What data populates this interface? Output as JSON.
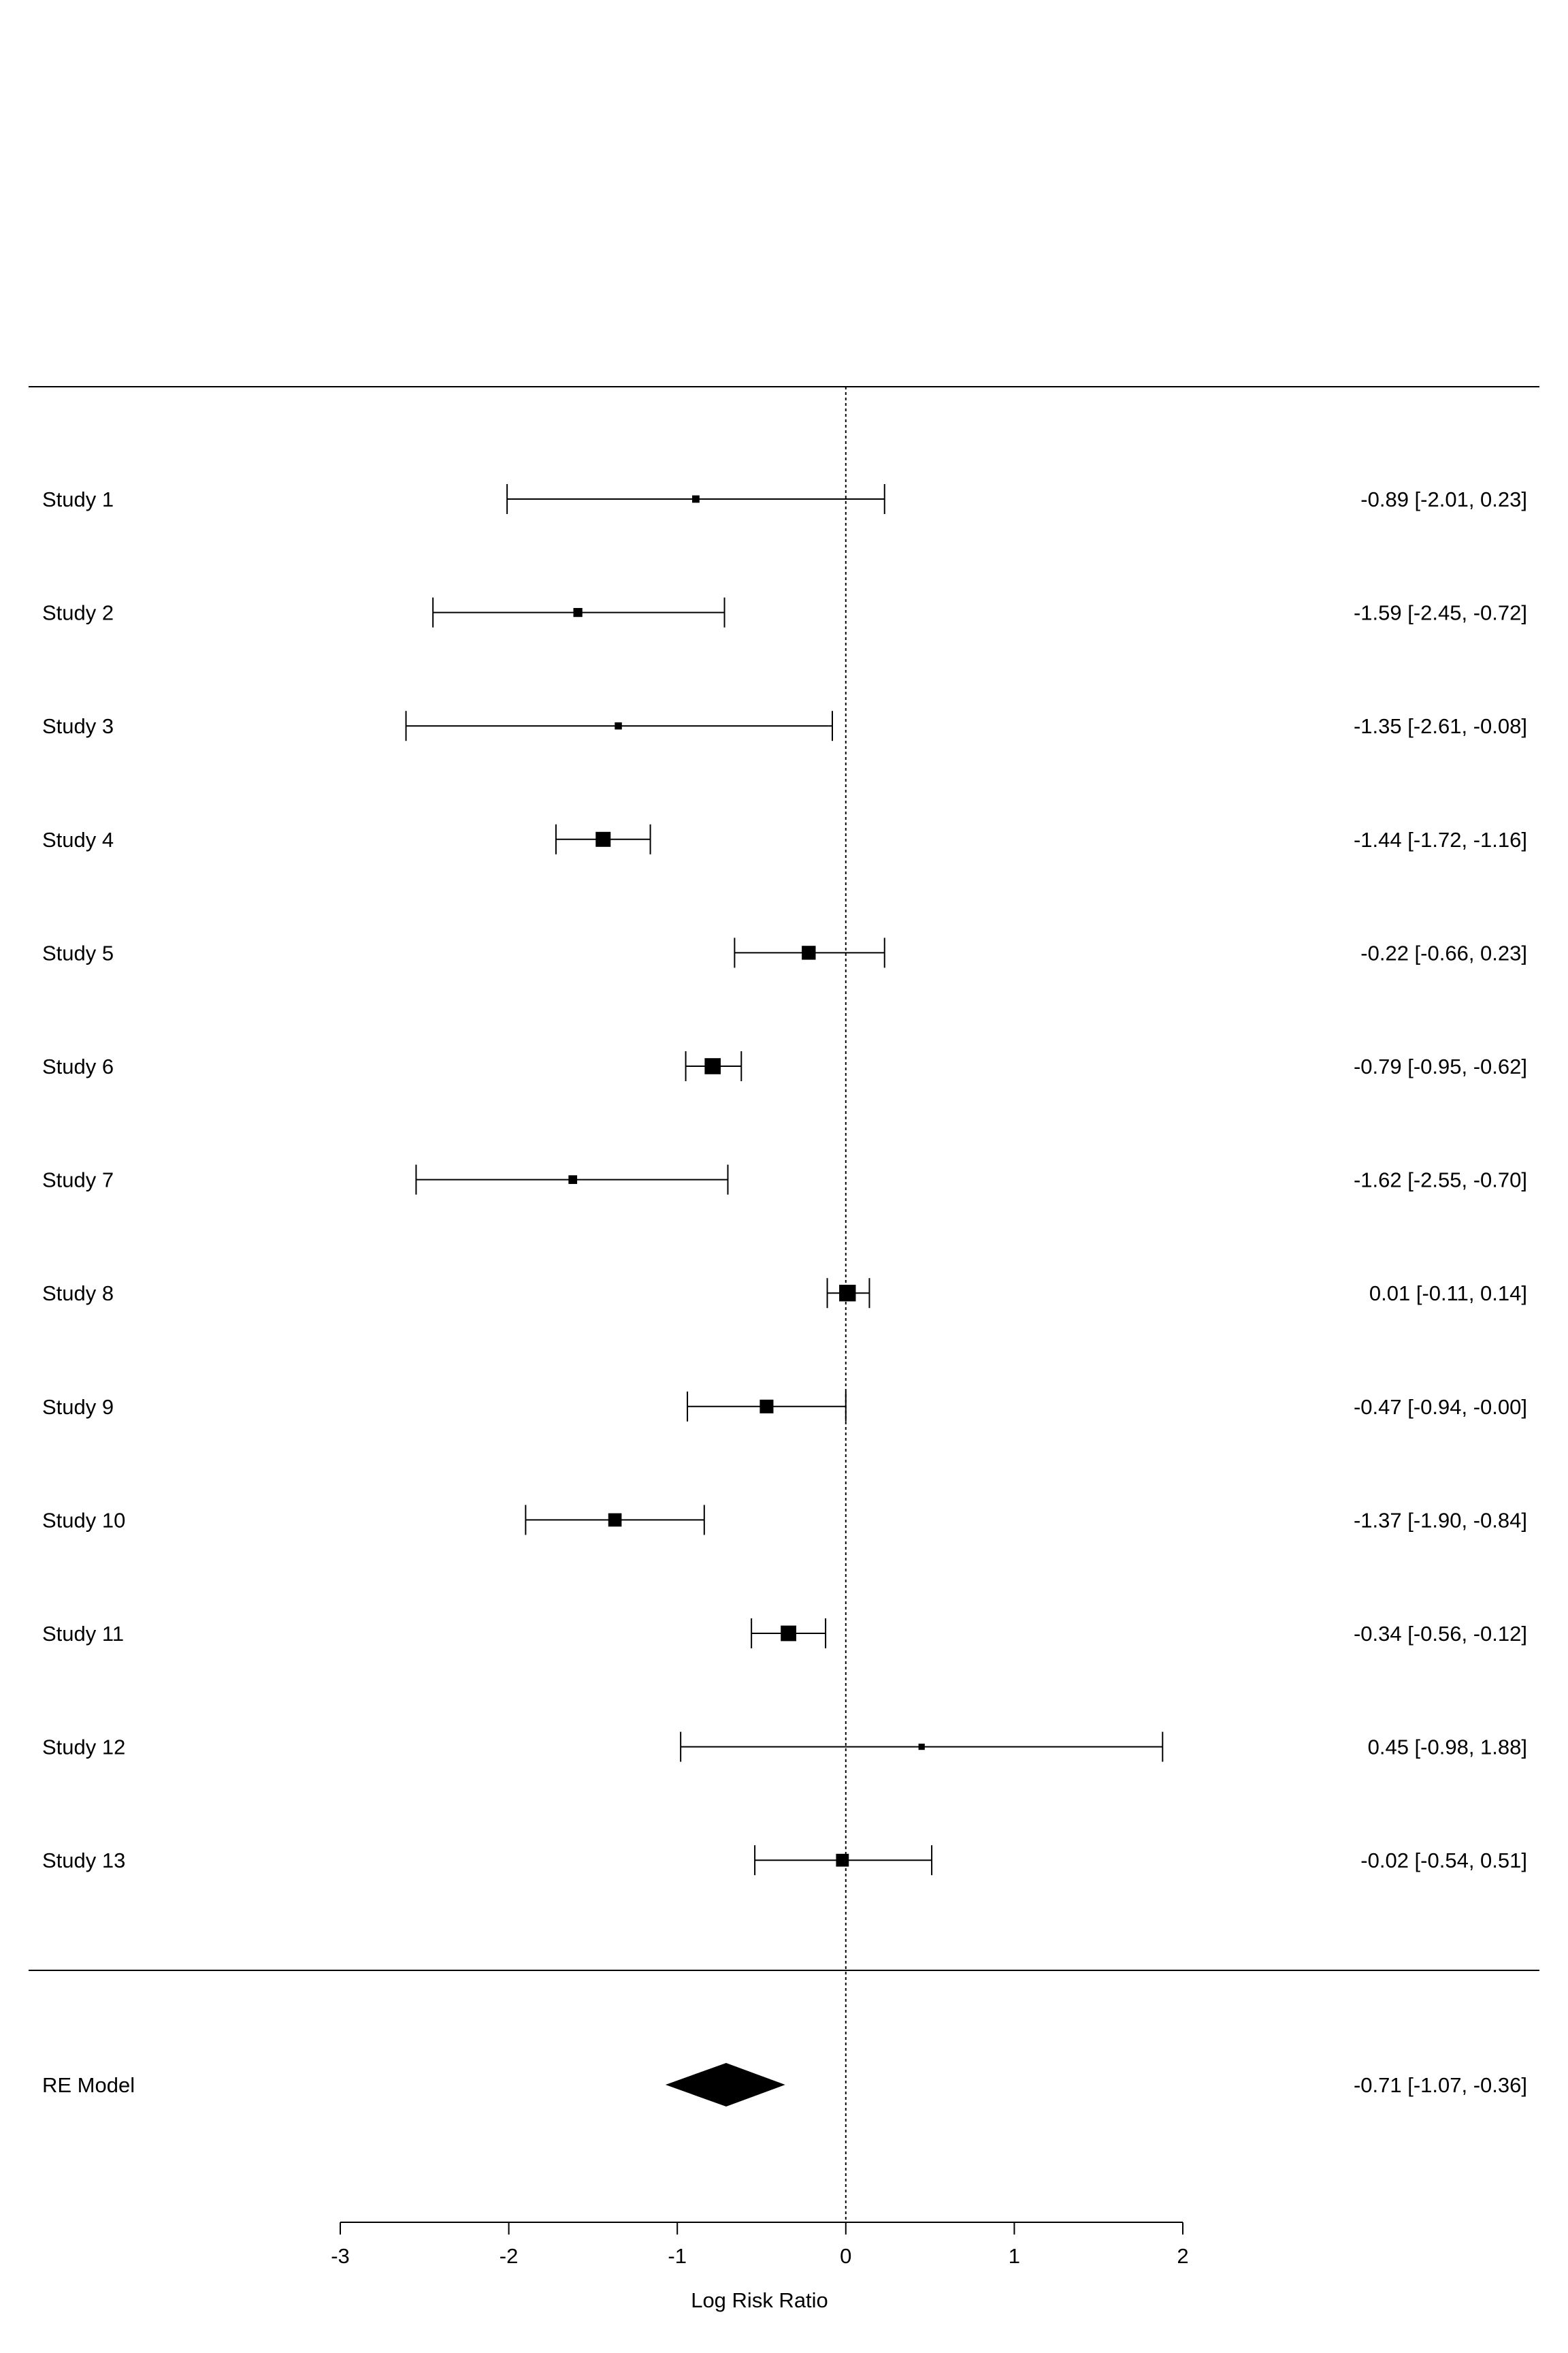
{
  "chart_data": {
    "type": "forest",
    "xlabel": "Log Risk Ratio",
    "xlim": [
      -3,
      2
    ],
    "xticks": [
      -3,
      -2,
      -1,
      0,
      1,
      2
    ],
    "reference_line": 0,
    "studies": [
      {
        "label": "Study 1",
        "estimate": -0.89,
        "ci_low": -2.01,
        "ci_high": 0.23,
        "weight_rel": 0.3,
        "text": "-0.89 [-2.01,  0.23]"
      },
      {
        "label": "Study 2",
        "estimate": -1.59,
        "ci_low": -2.45,
        "ci_high": -0.72,
        "weight_rel": 0.45,
        "text": "-1.59 [-2.45, -0.72]"
      },
      {
        "label": "Study 3",
        "estimate": -1.35,
        "ci_low": -2.61,
        "ci_high": -0.08,
        "weight_rel": 0.28,
        "text": "-1.35 [-2.61, -0.08]"
      },
      {
        "label": "Study 4",
        "estimate": -1.44,
        "ci_low": -1.72,
        "ci_high": -1.16,
        "weight_rel": 1.0,
        "text": "-1.44 [-1.72, -1.16]"
      },
      {
        "label": "Study 5",
        "estimate": -0.22,
        "ci_low": -0.66,
        "ci_high": 0.23,
        "weight_rel": 0.9,
        "text": "-0.22 [-0.66,  0.23]"
      },
      {
        "label": "Study 6",
        "estimate": -0.79,
        "ci_low": -0.95,
        "ci_high": -0.62,
        "weight_rel": 1.1,
        "text": "-0.79 [-0.95, -0.62]"
      },
      {
        "label": "Study 7",
        "estimate": -1.62,
        "ci_low": -2.55,
        "ci_high": -0.7,
        "weight_rel": 0.42,
        "text": "-1.62 [-2.55, -0.70]"
      },
      {
        "label": "Study 8",
        "estimate": 0.01,
        "ci_low": -0.11,
        "ci_high": 0.14,
        "weight_rel": 1.15,
        "text": "0.01 [-0.11,  0.14]"
      },
      {
        "label": "Study 9",
        "estimate": -0.47,
        "ci_low": -0.94,
        "ci_high": -0.0,
        "weight_rel": 0.88,
        "text": "-0.47 [-0.94, -0.00]"
      },
      {
        "label": "Study 10",
        "estimate": -1.37,
        "ci_low": -1.9,
        "ci_high": -0.84,
        "weight_rel": 0.85,
        "text": "-1.37 [-1.90, -0.84]"
      },
      {
        "label": "Study 11",
        "estimate": -0.34,
        "ci_low": -0.56,
        "ci_high": -0.12,
        "weight_rel": 1.05,
        "text": "-0.34 [-0.56, -0.12]"
      },
      {
        "label": "Study 12",
        "estimate": 0.45,
        "ci_low": -0.98,
        "ci_high": 1.88,
        "weight_rel": 0.2,
        "text": "0.45 [-0.98,  1.88]"
      },
      {
        "label": "Study 13",
        "estimate": -0.02,
        "ci_low": -0.54,
        "ci_high": 0.51,
        "weight_rel": 0.8,
        "text": "-0.02 [-0.54,  0.51]"
      }
    ],
    "summary": {
      "label": "RE Model",
      "estimate": -0.71,
      "ci_low": -1.07,
      "ci_high": -0.36,
      "text": "-0.71 [-1.07, -0.36]"
    }
  }
}
